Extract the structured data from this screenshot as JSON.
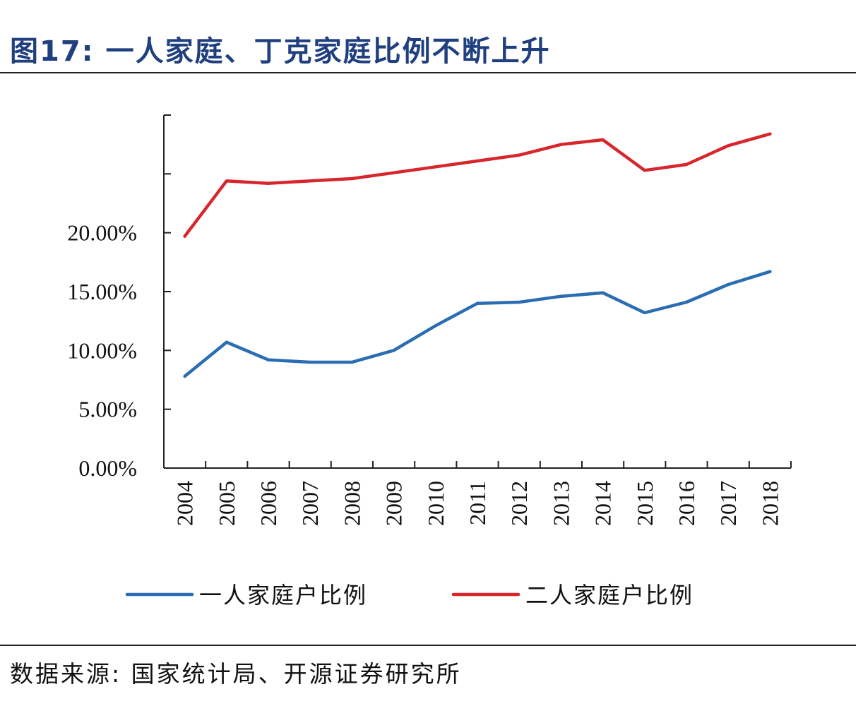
{
  "header": {
    "title": "图17:  一人家庭、丁克家庭比例不断上升"
  },
  "footer": {
    "source": "数据来源:  国家统计局、开源证券研究所"
  },
  "colors": {
    "series_1": "#2a6db3",
    "series_2": "#d7262c",
    "title": "#1f3f7f"
  },
  "chart_data": {
    "type": "line",
    "title": "图17:  一人家庭、丁克家庭比例不断上升",
    "xlabel": "",
    "ylabel": "",
    "x": [
      "2004",
      "2005",
      "2006",
      "2007",
      "2008",
      "2009",
      "2010",
      "2011",
      "2012",
      "2013",
      "2014",
      "2015",
      "2016",
      "2017",
      "2018"
    ],
    "ylim": [
      0,
      30
    ],
    "yticks": [
      0,
      5,
      10,
      15,
      20,
      25,
      30
    ],
    "ytick_labels": [
      "0.00%",
      "5.00%",
      "10.00%",
      "15.00%",
      "20.00%",
      "",
      ""
    ],
    "grid": false,
    "legend_position": "bottom",
    "series": [
      {
        "name": "一人家庭户比例",
        "values": [
          7.8,
          10.7,
          9.2,
          9.0,
          9.0,
          10.0,
          12.1,
          14.0,
          14.1,
          14.6,
          14.9,
          13.2,
          14.1,
          15.6,
          16.7
        ]
      },
      {
        "name": "二人家庭户比例",
        "values": [
          19.7,
          24.4,
          24.2,
          24.4,
          24.6,
          25.1,
          25.6,
          26.1,
          26.6,
          27.5,
          27.9,
          25.3,
          25.8,
          27.4,
          28.4
        ]
      }
    ]
  }
}
